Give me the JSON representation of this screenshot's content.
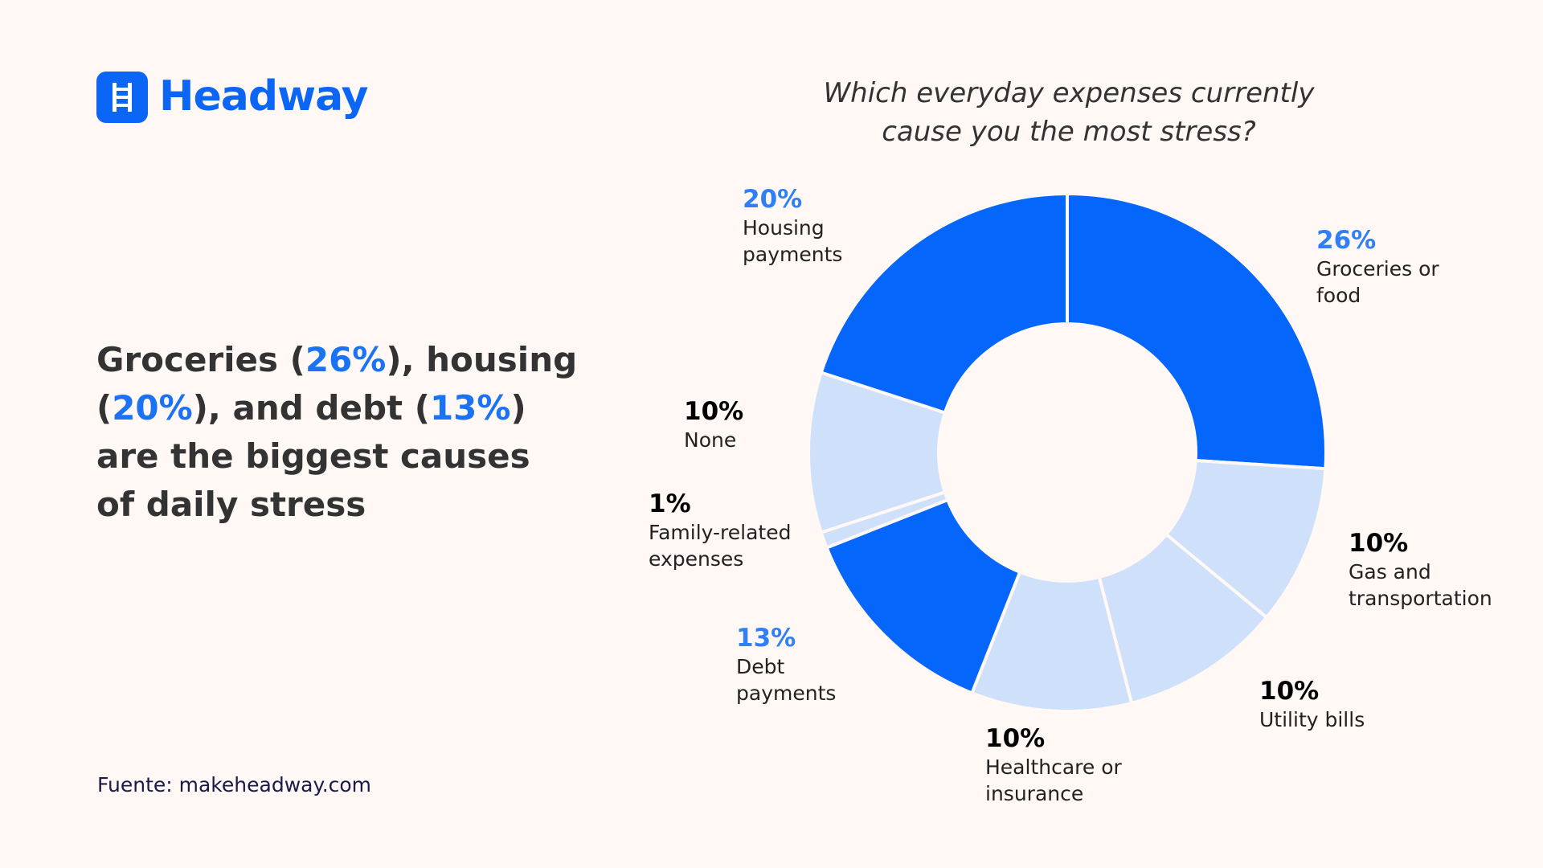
{
  "brand": "Headway",
  "headline": [
    "Groceries (",
    "26%",
    "), housing (",
    "20%",
    "), and debt (",
    "13%",
    ") are the biggest causes of daily stress"
  ],
  "source": "Fuente: makeheadway.com",
  "chart_data": {
    "type": "donut",
    "title": "Which everyday expenses currently cause you the most stress?",
    "categories": [
      "Groceries or food",
      "Gas and transportation",
      "Utility bills",
      "Healthcare or insurance",
      "Debt payments",
      "Family-related expenses",
      "None",
      "Housing payments"
    ],
    "values": [
      26,
      10,
      10,
      10,
      13,
      1,
      10,
      20
    ],
    "value_labels": [
      "26%",
      "10%",
      "10%",
      "10%",
      "13%",
      "1%",
      "10%",
      "20%"
    ],
    "colors": [
      "#0466fb",
      "#cfe0fb",
      "#cfe0fb",
      "#cfe0fb",
      "#0466fb",
      "#cfe0fb",
      "#cfe0fb",
      "#0466fb"
    ],
    "label_colors": [
      "#2f80f7",
      "#000000",
      "#000000",
      "#000000",
      "#2f80f7",
      "#000000",
      "#000000",
      "#2f80f7"
    ]
  }
}
